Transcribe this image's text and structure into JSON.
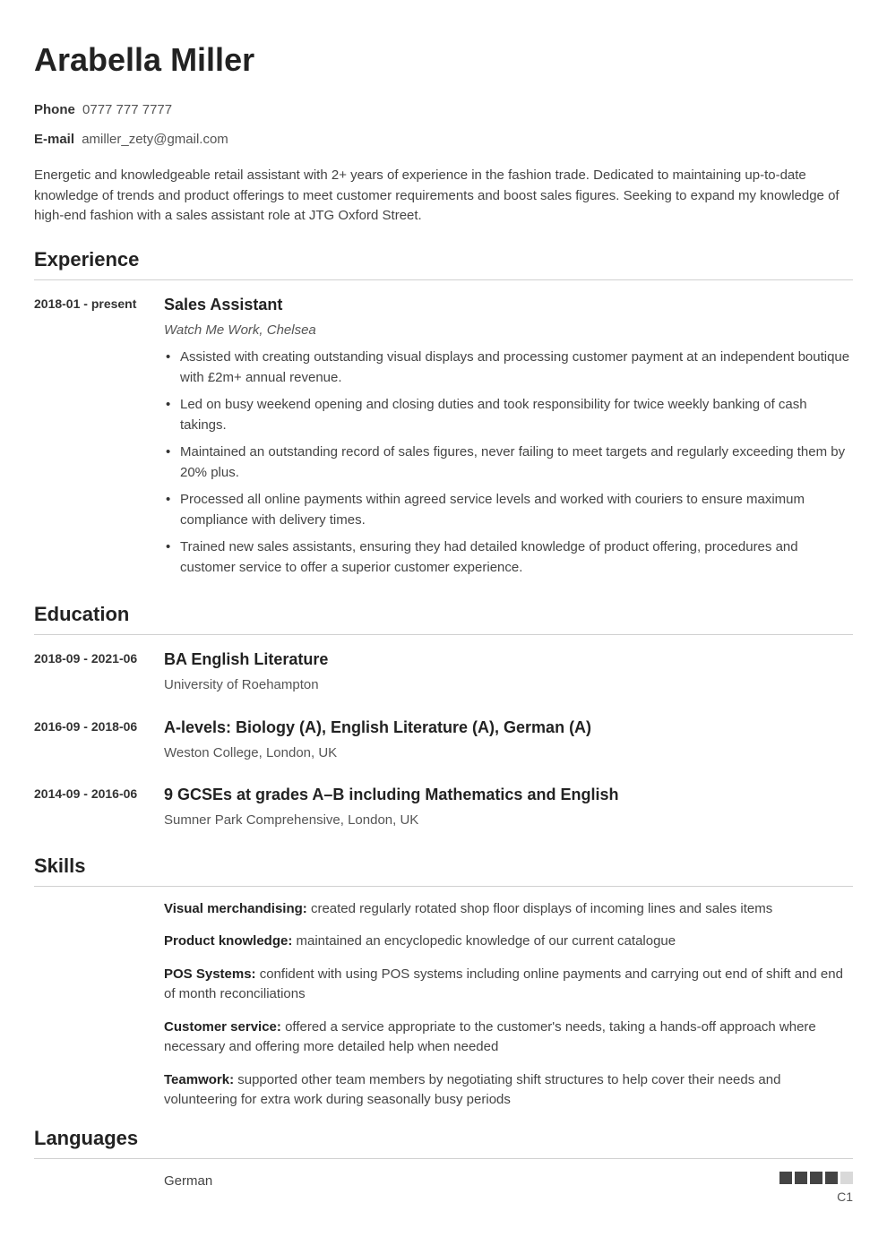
{
  "colors": {
    "text_primary": "#222222",
    "text_body": "#444444",
    "text_muted": "#555555",
    "divider": "#d0d0d0",
    "rating_filled": "#444444",
    "rating_empty": "#d9d9d9",
    "background": "#ffffff"
  },
  "typography": {
    "name_fontsize": 36,
    "section_title_fontsize": 22,
    "entry_title_fontsize": 18,
    "body_fontsize": 15,
    "dates_fontsize": 14
  },
  "header": {
    "name": "Arabella Miller",
    "contacts": [
      {
        "label": "Phone",
        "value": "0777 777 7777"
      },
      {
        "label": "E-mail",
        "value": "amiller_zety@gmail.com"
      }
    ],
    "summary": "Energetic and knowledgeable retail assistant with 2+ years of experience in the fashion trade. Dedicated to maintaining up-to-date knowledge of trends and product offerings to meet customer requirements and boost sales figures. Seeking to expand my knowledge of high-end fashion with a sales assistant role at JTG Oxford Street."
  },
  "sections": {
    "experience_title": "Experience",
    "education_title": "Education",
    "skills_title": "Skills",
    "languages_title": "Languages"
  },
  "experience": [
    {
      "dates": "2018-01 - present",
      "title": "Sales Assistant",
      "subtitle": "Watch Me Work, Chelsea",
      "bullets": [
        "Assisted with creating outstanding visual displays and processing customer payment at an independent boutique with £2m+ annual revenue.",
        "Led on busy weekend opening and closing duties and took responsibility for twice weekly banking of cash takings.",
        "Maintained an outstanding record of sales figures, never failing to meet targets and regularly exceeding them by 20% plus.",
        "Processed all online payments within agreed service levels and worked with couriers to ensure maximum compliance with delivery times.",
        "Trained new sales assistants, ensuring they had detailed knowledge of product offering, procedures and customer service to offer a superior customer experience."
      ]
    }
  ],
  "education": [
    {
      "dates": "2018-09 - 2021-06",
      "title": "BA English Literature",
      "institution": "University of Roehampton"
    },
    {
      "dates": "2016-09 - 2018-06",
      "title": "A-levels: Biology (A), English Literature (A), German (A)",
      "institution": "Weston College, London, UK"
    },
    {
      "dates": "2014-09 - 2016-06",
      "title": "9 GCSEs at grades A–B including Mathematics and English",
      "institution": "Sumner Park Comprehensive, London, UK"
    }
  ],
  "skills": [
    {
      "name": "Visual merchandising:",
      "desc": " created regularly rotated shop floor displays of incoming lines and sales items"
    },
    {
      "name": "Product knowledge:",
      "desc": " maintained an encyclopedic knowledge of our current catalogue"
    },
    {
      "name": "POS Systems:",
      "desc": " confident with using POS systems including online payments and carrying out end of shift and end of month reconciliations"
    },
    {
      "name": "Customer service:",
      "desc": " offered a service appropriate to the customer's needs, taking a hands-off approach where necessary and offering more detailed help when needed"
    },
    {
      "name": "Teamwork:",
      "desc": " supported other team members by negotiating shift structures to help cover their needs and volunteering for extra work during seasonally busy periods"
    }
  ],
  "languages": [
    {
      "name": "German",
      "level": "C1",
      "rating_filled": 4,
      "rating_total": 5
    }
  ]
}
